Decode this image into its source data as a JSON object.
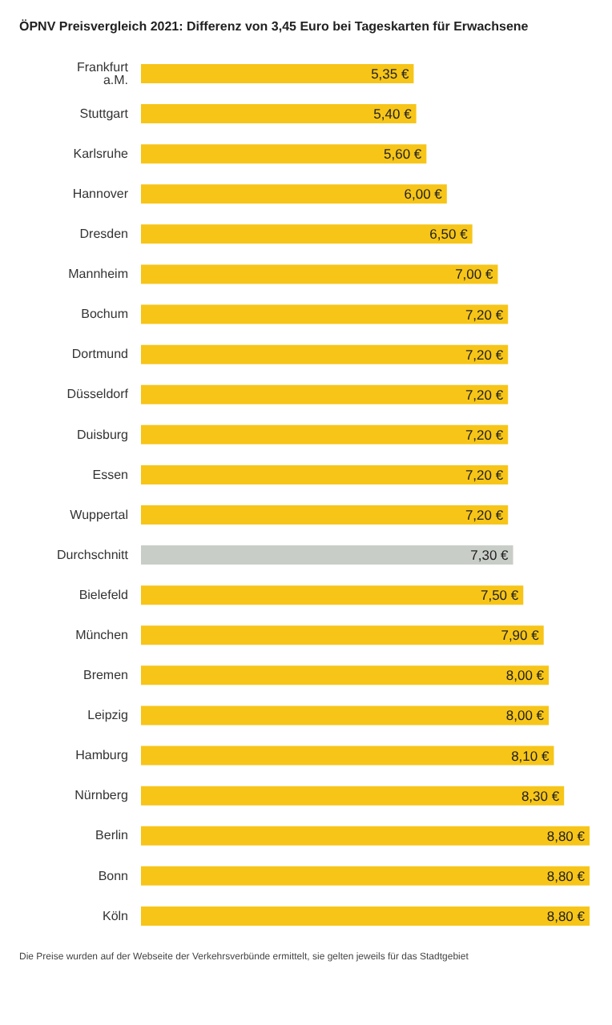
{
  "chart_data": {
    "type": "bar",
    "orientation": "horizontal",
    "title": "ÖPNV Preisvergleich 2021: Differenz von 3,45 Euro bei Tageskarten für Erwachsene",
    "categories": [
      "Frankfurt a.M.",
      "Stuttgart",
      "Karlsruhe",
      "Hannover",
      "Dresden",
      "Mannheim",
      "Bochum",
      "Dortmund",
      "Düsseldorf",
      "Duisburg",
      "Essen",
      "Wuppertal",
      "Durchschnitt",
      "Bielefeld",
      "München",
      "Bremen",
      "Leipzig",
      "Hamburg",
      "Nürnberg",
      "Berlin",
      "Bonn",
      "Köln"
    ],
    "values": [
      5.35,
      5.4,
      5.6,
      6.0,
      6.5,
      7.0,
      7.2,
      7.2,
      7.2,
      7.2,
      7.2,
      7.2,
      7.3,
      7.5,
      7.9,
      8.0,
      8.0,
      8.1,
      8.3,
      8.8,
      8.8,
      8.8
    ],
    "value_labels": [
      "5,35 €",
      "5,40 €",
      "5,60 €",
      "6,00 €",
      "6,50 €",
      "7,00 €",
      "7,20 €",
      "7,20 €",
      "7,20 €",
      "7,20 €",
      "7,20 €",
      "7,20 €",
      "7,30 €",
      "7,50 €",
      "7,90 €",
      "8,00 €",
      "8,00 €",
      "8,10 €",
      "8,30 €",
      "8,80 €",
      "8,80 €",
      "8,80 €"
    ],
    "colors": [
      "#f7c518",
      "#f7c518",
      "#f7c518",
      "#f7c518",
      "#f7c518",
      "#f7c518",
      "#f7c518",
      "#f7c518",
      "#f7c518",
      "#f7c518",
      "#f7c518",
      "#f7c518",
      "#c9cdc8",
      "#f7c518",
      "#f7c518",
      "#f7c518",
      "#f7c518",
      "#f7c518",
      "#f7c518",
      "#f7c518",
      "#f7c518",
      "#f7c518"
    ],
    "tick_labels": "y",
    "grid": false,
    "legend": false,
    "annotations": [
      "Die Preise wurden auf der Webseite der Verkehrsverbünde ermittelt, sie gelten jeweils für das Stadtgebiet"
    ]
  }
}
